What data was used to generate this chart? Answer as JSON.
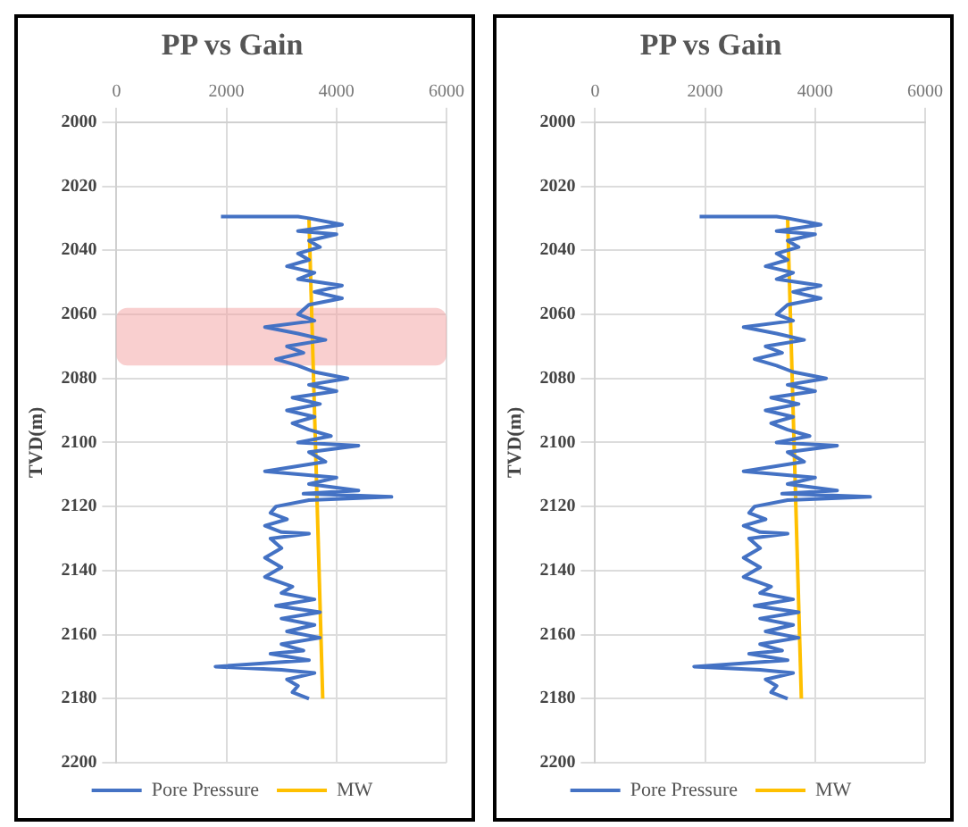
{
  "chart_data": [
    {
      "type": "line",
      "title": "PP vs Gain",
      "ylabel": "TVD(m)",
      "xlim": [
        0,
        6000
      ],
      "xticks": [
        0,
        2000,
        4000,
        6000
      ],
      "ylim": [
        2200,
        2000
      ],
      "yticks": [
        2000,
        2020,
        2040,
        2060,
        2080,
        2100,
        2120,
        2140,
        2160,
        2180,
        2200
      ],
      "grid": true,
      "legend": "bottom",
      "marker": "none",
      "line_style": "solid",
      "bands": [
        {
          "axis": "y",
          "from": 2058,
          "to": 2076,
          "color": "#f4a0a0"
        }
      ],
      "series": [
        {
          "name": "Pore Pressure",
          "color": "#4472c4",
          "x": [
            1900,
            3300,
            3500,
            4100,
            3300,
            4000,
            3500,
            3700,
            3300,
            3500,
            3100,
            3600,
            3300,
            4100,
            3600,
            4100,
            3500,
            3300,
            3600,
            2700,
            3300,
            3800,
            3100,
            3400,
            2900,
            3300,
            3600,
            4200,
            3500,
            4000,
            3200,
            3700,
            3100,
            3600,
            3200,
            3500,
            3900,
            3300,
            4400,
            3500,
            3800,
            2700,
            4000,
            3500,
            4400,
            3400,
            5000,
            3500,
            2900,
            2800,
            3100,
            2700,
            3000,
            3500,
            2800,
            3000,
            2700,
            3000,
            2700,
            3200,
            3000,
            3600,
            2900,
            3700,
            3000,
            3600,
            3100,
            3700,
            3000,
            3400,
            2800,
            3500,
            1800,
            3000,
            3600,
            3100,
            3300,
            3200,
            3500
          ],
          "values": [
            2029.5,
            2029.5,
            2030,
            2032,
            2034,
            2035,
            2037,
            2039,
            2041,
            2043,
            2045,
            2047,
            2049,
            2051,
            2053,
            2055,
            2057,
            2060,
            2062,
            2064,
            2066,
            2068,
            2070,
            2072,
            2074,
            2076,
            2078,
            2080,
            2082,
            2084,
            2086,
            2088,
            2090,
            2092,
            2094,
            2096,
            2098,
            2100,
            2101,
            2103,
            2106,
            2109,
            2111,
            2113,
            2115,
            2116,
            2117,
            2118,
            2120,
            2122,
            2124,
            2126,
            2128,
            2128.5,
            2130,
            2133,
            2136,
            2139,
            2142,
            2145,
            2147,
            2149,
            2151,
            2153,
            2155,
            2157,
            2159,
            2161,
            2163,
            2165,
            2166,
            2168,
            2170,
            2171,
            2172,
            2174,
            2176,
            2178,
            2180
          ]
        },
        {
          "name": "MW",
          "color": "#ffc000",
          "x": [
            3500,
            3750
          ],
          "values": [
            2030,
            2180
          ]
        }
      ]
    },
    {
      "type": "line",
      "title": "PP vs Gain",
      "ylabel": "TVD(m)",
      "xlim": [
        0,
        6000
      ],
      "xticks": [
        0,
        2000,
        4000,
        6000
      ],
      "ylim": [
        2200,
        2000
      ],
      "yticks": [
        2000,
        2020,
        2040,
        2060,
        2080,
        2100,
        2120,
        2140,
        2160,
        2180,
        2200
      ],
      "grid": true,
      "legend": "bottom",
      "marker": "none",
      "line_style": "solid",
      "series": [
        {
          "name": "Pore Pressure",
          "color": "#4472c4",
          "x": [
            1900,
            3300,
            3500,
            4100,
            3300,
            4000,
            3500,
            3700,
            3300,
            3500,
            3100,
            3600,
            3300,
            4100,
            3600,
            4100,
            3500,
            3300,
            3600,
            2700,
            3300,
            3800,
            3100,
            3400,
            2900,
            3300,
            3600,
            4200,
            3500,
            4000,
            3200,
            3700,
            3100,
            3600,
            3200,
            3500,
            3900,
            3300,
            4400,
            3500,
            3800,
            2700,
            4000,
            3500,
            4400,
            3400,
            5000,
            3500,
            2900,
            2800,
            3100,
            2700,
            3000,
            3500,
            2800,
            3000,
            2700,
            3000,
            2700,
            3200,
            3000,
            3600,
            2900,
            3700,
            3000,
            3600,
            3100,
            3700,
            3000,
            3400,
            2800,
            3500,
            1800,
            3000,
            3600,
            3100,
            3300,
            3200,
            3500
          ],
          "values": [
            2029.5,
            2029.5,
            2030,
            2032,
            2034,
            2035,
            2037,
            2039,
            2041,
            2043,
            2045,
            2047,
            2049,
            2051,
            2053,
            2055,
            2057,
            2060,
            2062,
            2064,
            2066,
            2068,
            2070,
            2072,
            2074,
            2076,
            2078,
            2080,
            2082,
            2084,
            2086,
            2088,
            2090,
            2092,
            2094,
            2096,
            2098,
            2100,
            2101,
            2103,
            2106,
            2109,
            2111,
            2113,
            2115,
            2116,
            2117,
            2118,
            2120,
            2122,
            2124,
            2126,
            2128,
            2128.5,
            2130,
            2133,
            2136,
            2139,
            2142,
            2145,
            2147,
            2149,
            2151,
            2153,
            2155,
            2157,
            2159,
            2161,
            2163,
            2165,
            2166,
            2168,
            2170,
            2171,
            2172,
            2174,
            2176,
            2178,
            2180
          ]
        },
        {
          "name": "MW",
          "color": "#ffc000",
          "x": [
            3500,
            3750
          ],
          "values": [
            2030,
            2180
          ]
        }
      ]
    }
  ]
}
